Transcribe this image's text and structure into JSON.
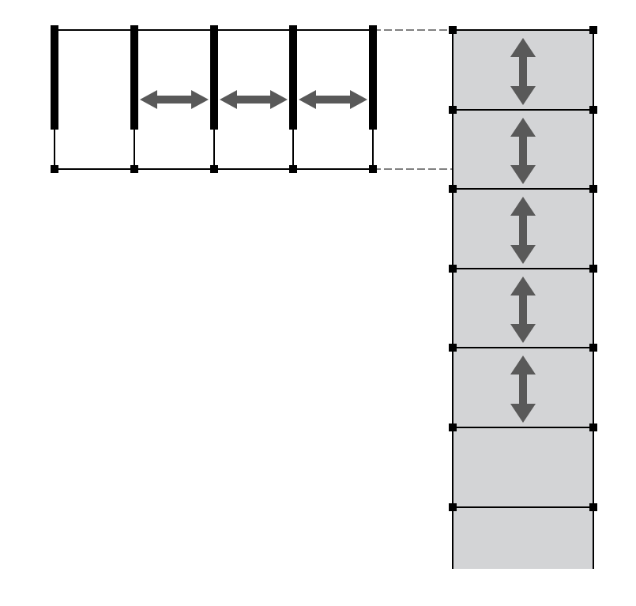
{
  "diagram": {
    "horizontal_section": {
      "walls": 5,
      "spacing_arrows": 3,
      "arrow_direction": "horizontal"
    },
    "vertical_section": {
      "bays": 7,
      "spacing_arrows": 5,
      "arrow_direction": "vertical"
    },
    "connectors": 2,
    "colors": {
      "line": "#000000",
      "wall": "#000000",
      "node": "#000000",
      "panel_fill": "#d3d4d6",
      "arrow": "#595959",
      "background": "#ffffff"
    },
    "icons": {
      "horizontal_arrow": "double-headed-horizontal-arrow-icon",
      "vertical_arrow": "double-headed-vertical-arrow-icon",
      "node": "square-node-icon"
    }
  }
}
